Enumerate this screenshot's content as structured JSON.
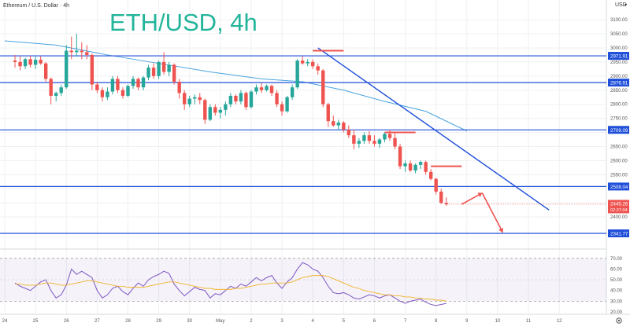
{
  "header": {
    "instrument": "Ethereum / U.S. Dollar · 4h",
    "big_title": "ETH/USD, 4h",
    "currency": "USD",
    "currency_arrow": "▾"
  },
  "colors": {
    "up": "#26a69a",
    "down": "#ef5350",
    "hline": "#1f4fd9",
    "trendline": "#1f4fd9",
    "ma": "#4aa3df",
    "rsi": "#7e57c2",
    "rsi_ma": "#f0b429",
    "title": "#22b59a"
  },
  "chart_data": [
    {
      "type": "candlestick",
      "title": "ETH/USD, 4h",
      "ylim": [
        2300,
        3170
      ],
      "y_ticks": [
        2400,
        2450,
        2500,
        2550,
        2600,
        2650,
        2700,
        2750,
        2800,
        2850,
        2900,
        2950,
        3000,
        3050,
        3100
      ],
      "x_ticks": [
        {
          "i": 0,
          "label": "24"
        },
        {
          "i": 6,
          "label": "25"
        },
        {
          "i": 12,
          "label": "26"
        },
        {
          "i": 18,
          "label": "27"
        },
        {
          "i": 24,
          "label": "28"
        },
        {
          "i": 30,
          "label": "29"
        },
        {
          "i": 36,
          "label": "30"
        },
        {
          "i": 42,
          "label": "May"
        },
        {
          "i": 48,
          "label": "2"
        },
        {
          "i": 54,
          "label": "3"
        },
        {
          "i": 60,
          "label": "4"
        },
        {
          "i": 66,
          "label": "5"
        },
        {
          "i": 72,
          "label": "6"
        },
        {
          "i": 78,
          "label": "7"
        },
        {
          "i": 84,
          "label": "8"
        },
        {
          "i": 90,
          "label": "9"
        },
        {
          "i": 96,
          "label": "10"
        },
        {
          "i": 102,
          "label": "11"
        },
        {
          "i": 108,
          "label": "12"
        }
      ],
      "ohlc": [
        [
          2955,
          2975,
          2930,
          2950
        ],
        [
          2950,
          2970,
          2920,
          2935
        ],
        [
          2935,
          2965,
          2925,
          2960
        ],
        [
          2960,
          2972,
          2930,
          2940
        ],
        [
          2940,
          2970,
          2925,
          2958
        ],
        [
          2958,
          2970,
          2940,
          2945
        ],
        [
          2945,
          2950,
          2880,
          2890
        ],
        [
          2890,
          2895,
          2800,
          2830
        ],
        [
          2830,
          2845,
          2810,
          2840
        ],
        [
          2840,
          2870,
          2830,
          2860
        ],
        [
          2860,
          3010,
          2855,
          2990
        ],
        [
          2990,
          3040,
          2960,
          2985
        ],
        [
          2985,
          3050,
          2970,
          2990
        ],
        [
          2990,
          3020,
          2960,
          2985
        ],
        [
          2985,
          3010,
          2960,
          2975
        ],
        [
          2975,
          2980,
          2850,
          2870
        ],
        [
          2870,
          2880,
          2840,
          2850
        ],
        [
          2850,
          2860,
          2810,
          2825
        ],
        [
          2825,
          2860,
          2815,
          2845
        ],
        [
          2845,
          2900,
          2835,
          2890
        ],
        [
          2890,
          2900,
          2840,
          2850
        ],
        [
          2850,
          2860,
          2820,
          2830
        ],
        [
          2830,
          2870,
          2825,
          2865
        ],
        [
          2865,
          2900,
          2855,
          2890
        ],
        [
          2890,
          2895,
          2850,
          2860
        ],
        [
          2860,
          2900,
          2850,
          2895
        ],
        [
          2895,
          2940,
          2885,
          2930
        ],
        [
          2930,
          2945,
          2890,
          2900
        ],
        [
          2900,
          2955,
          2890,
          2950
        ],
        [
          2950,
          2985,
          2905,
          2915
        ],
        [
          2915,
          2950,
          2900,
          2940
        ],
        [
          2940,
          2945,
          2870,
          2880
        ],
        [
          2880,
          2890,
          2820,
          2840
        ],
        [
          2840,
          2850,
          2780,
          2800
        ],
        [
          2800,
          2830,
          2790,
          2820
        ],
        [
          2820,
          2835,
          2800,
          2825
        ],
        [
          2825,
          2840,
          2800,
          2815
        ],
        [
          2815,
          2820,
          2730,
          2745
        ],
        [
          2745,
          2800,
          2740,
          2790
        ],
        [
          2790,
          2800,
          2760,
          2770
        ],
        [
          2770,
          2790,
          2750,
          2780
        ],
        [
          2780,
          2810,
          2760,
          2800
        ],
        [
          2800,
          2840,
          2790,
          2830
        ],
        [
          2830,
          2835,
          2800,
          2810
        ],
        [
          2810,
          2850,
          2800,
          2840
        ],
        [
          2840,
          2845,
          2780,
          2790
        ],
        [
          2790,
          2850,
          2785,
          2845
        ],
        [
          2845,
          2870,
          2835,
          2860
        ],
        [
          2860,
          2875,
          2840,
          2850
        ],
        [
          2850,
          2870,
          2845,
          2865
        ],
        [
          2865,
          2870,
          2830,
          2840
        ],
        [
          2840,
          2850,
          2790,
          2800
        ],
        [
          2800,
          2810,
          2760,
          2775
        ],
        [
          2775,
          2830,
          2770,
          2825
        ],
        [
          2825,
          2870,
          2815,
          2860
        ],
        [
          2860,
          2960,
          2855,
          2955
        ],
        [
          2955,
          2970,
          2940,
          2945
        ],
        [
          2945,
          2960,
          2935,
          2950
        ],
        [
          2950,
          2960,
          2925,
          2935
        ],
        [
          2935,
          2945,
          2905,
          2920
        ],
        [
          2920,
          2925,
          2790,
          2800
        ],
        [
          2800,
          2805,
          2720,
          2740
        ],
        [
          2740,
          2760,
          2720,
          2725
        ],
        [
          2725,
          2745,
          2710,
          2735
        ],
        [
          2735,
          2740,
          2700,
          2710
        ],
        [
          2710,
          2725,
          2680,
          2690
        ],
        [
          2690,
          2710,
          2640,
          2660
        ],
        [
          2660,
          2680,
          2645,
          2670
        ],
        [
          2670,
          2700,
          2660,
          2690
        ],
        [
          2690,
          2705,
          2660,
          2670
        ],
        [
          2670,
          2690,
          2650,
          2660
        ],
        [
          2660,
          2680,
          2645,
          2675
        ],
        [
          2675,
          2700,
          2665,
          2695
        ],
        [
          2695,
          2710,
          2670,
          2680
        ],
        [
          2680,
          2700,
          2640,
          2650
        ],
        [
          2650,
          2660,
          2570,
          2580
        ],
        [
          2580,
          2600,
          2560,
          2590
        ],
        [
          2590,
          2600,
          2560,
          2565
        ],
        [
          2565,
          2590,
          2555,
          2585
        ],
        [
          2585,
          2600,
          2570,
          2595
        ],
        [
          2595,
          2600,
          2550,
          2560
        ],
        [
          2560,
          2570,
          2530,
          2535
        ],
        [
          2535,
          2540,
          2480,
          2490
        ],
        [
          2490,
          2500,
          2445,
          2450
        ],
        [
          2450,
          2470,
          2440,
          2445
        ]
      ],
      "ohlc_start_index": 2,
      "hlines": [
        2971.91,
        2876.91,
        2709.09,
        2508.04,
        2341.77
      ],
      "hline_labels": [
        "2971.91",
        "2876.91",
        "2709.09",
        "2508.04",
        "2341.77"
      ],
      "trendline": {
        "from": [
          61,
          3000
        ],
        "to": [
          106,
          2425
        ]
      },
      "resistance_marks": [
        {
          "from": 60,
          "to": 66,
          "price": 2990
        },
        {
          "from": 74,
          "to": 80,
          "price": 2700
        },
        {
          "from": 83,
          "to": 89,
          "price": 2580
        }
      ],
      "forecast_path": [
        [
          89,
          2445
        ],
        [
          93,
          2485
        ],
        [
          97,
          2345
        ]
      ],
      "last_price": 2445.26,
      "last_price_label": "2445.26",
      "countdown_label": "02:27:04",
      "moving_average": [
        [
          0,
          3025
        ],
        [
          10,
          3010
        ],
        [
          20,
          2975
        ],
        [
          30,
          2945
        ],
        [
          40,
          2915
        ],
        [
          50,
          2890
        ],
        [
          58,
          2880
        ],
        [
          66,
          2850
        ],
        [
          74,
          2810
        ],
        [
          82,
          2775
        ],
        [
          90,
          2705
        ]
      ],
      "price_levels": [
        {
          "value": 3100,
          "label": "3100.00"
        },
        {
          "value": 3050,
          "label": "3050.00"
        },
        {
          "value": 3000,
          "label": "3000.00"
        },
        {
          "value": 2950,
          "label": "2950.00"
        },
        {
          "value": 2900,
          "label": "2900.00"
        },
        {
          "value": 2850,
          "label": "2850.00"
        },
        {
          "value": 2800,
          "label": "2800.00"
        },
        {
          "value": 2750,
          "label": "2750.00"
        },
        {
          "value": 2650,
          "label": "2650.00"
        },
        {
          "value": 2600,
          "label": "2600.00"
        },
        {
          "value": 2550,
          "label": "2550.00"
        },
        {
          "value": 2400,
          "label": "2400.00"
        }
      ]
    },
    {
      "type": "line",
      "title": "RSI",
      "ylim": [
        20,
        75
      ],
      "y_ticks": [
        {
          "value": 70,
          "label": "70.00"
        },
        {
          "value": 60,
          "label": "60.00"
        },
        {
          "value": 50,
          "label": "50.00"
        },
        {
          "value": 40,
          "label": "40.00"
        },
        {
          "value": 30,
          "label": "30.00"
        },
        {
          "value": 20,
          "label": "20.00"
        }
      ],
      "band": [
        30,
        70
      ],
      "series": [
        {
          "name": "RSI",
          "values": [
            47,
            44,
            42,
            40,
            44,
            48,
            50,
            40,
            33,
            36,
            45,
            60,
            55,
            58,
            55,
            52,
            40,
            33,
            36,
            42,
            44,
            39,
            36,
            42,
            47,
            44,
            50,
            53,
            55,
            58,
            56,
            46,
            40,
            35,
            39,
            43,
            41,
            40,
            33,
            37,
            36,
            40,
            44,
            42,
            46,
            44,
            48,
            52,
            49,
            52,
            54,
            47,
            42,
            48,
            52,
            60,
            66,
            64,
            60,
            58,
            52,
            44,
            38,
            37,
            38,
            36,
            33,
            32,
            34,
            36,
            35,
            33,
            35,
            36,
            33,
            30,
            28,
            30,
            31,
            32,
            29,
            27,
            26,
            27,
            28
          ]
        },
        {
          "name": "RSI-based MA",
          "values": [
            46,
            46,
            45,
            45,
            45,
            46,
            47,
            47,
            46,
            45,
            45,
            46,
            47,
            48,
            49,
            49,
            48,
            47,
            46,
            45,
            44,
            44,
            43,
            43,
            43,
            43,
            44,
            45,
            46,
            47,
            48,
            48,
            47,
            46,
            45,
            44,
            43,
            42,
            42,
            41,
            41,
            41,
            41,
            42,
            42,
            43,
            44,
            45,
            46,
            46,
            47,
            47,
            47,
            47,
            48,
            50,
            52,
            53,
            54,
            54,
            54,
            53,
            51,
            49,
            47,
            45,
            43,
            42,
            40,
            39,
            38,
            37,
            36,
            36,
            35,
            35,
            34,
            34,
            33,
            33,
            32,
            32,
            31,
            31,
            30
          ]
        }
      ],
      "series_start_index": 2
    }
  ]
}
